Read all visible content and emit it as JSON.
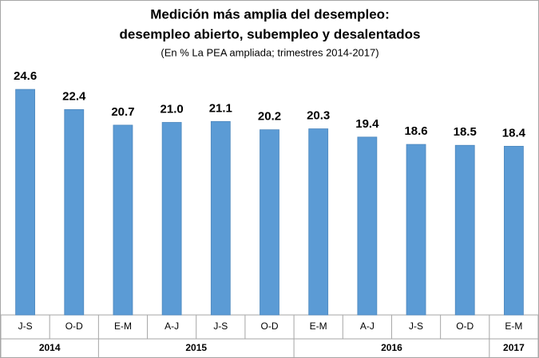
{
  "chart_data": {
    "type": "bar",
    "title": "Medición más amplia del desempleo:",
    "title_line2": "desempleo abierto, subempleo y desalentados",
    "subtitle": "(En % La PEA ampliada; trimestres 2014-2017)",
    "groups": [
      {
        "label": "2014",
        "categories": [
          "J-S",
          "O-D"
        ]
      },
      {
        "label": "2015",
        "categories": [
          "E-M",
          "A-J",
          "J-S",
          "O-D"
        ]
      },
      {
        "label": "2016",
        "categories": [
          "E-M",
          "A-J",
          "J-S",
          "O-D"
        ]
      },
      {
        "label": "2017",
        "categories": [
          "E-M"
        ]
      }
    ],
    "values": [
      24.6,
      22.4,
      20.7,
      21.0,
      21.1,
      20.2,
      20.3,
      19.4,
      18.6,
      18.5,
      18.4
    ],
    "value_labels": [
      "24.6",
      "22.4",
      "20.7",
      "21.0",
      "21.1",
      "20.2",
      "20.3",
      "19.4",
      "18.6",
      "18.5",
      "18.4"
    ],
    "color": "#5b9bd5",
    "ylim": [
      0,
      28
    ]
  }
}
